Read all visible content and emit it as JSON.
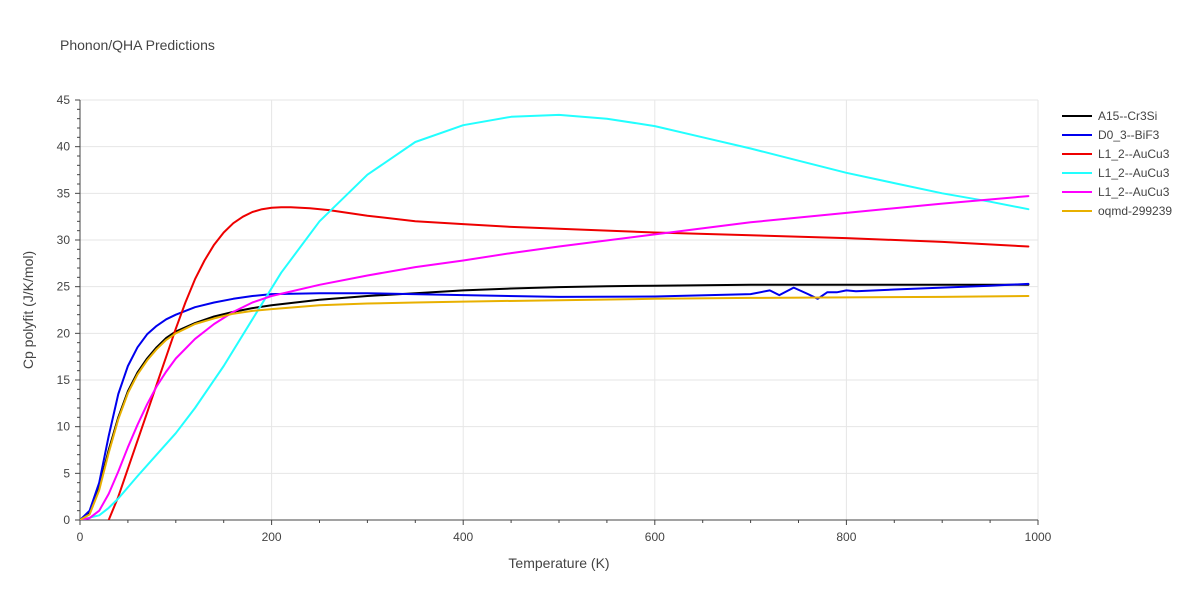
{
  "chart_data": {
    "type": "line",
    "title": "Phonon/QHA Predictions",
    "xlabel": "Temperature (K)",
    "ylabel": "Cp polyfit (J/K/mol)",
    "xlim": [
      0,
      1000
    ],
    "ylim": [
      0,
      45
    ],
    "xticks": [
      0,
      200,
      400,
      600,
      800,
      1000
    ],
    "yticks": [
      0,
      5,
      10,
      15,
      20,
      25,
      30,
      35,
      40,
      45
    ],
    "xtick_labels": [
      "0",
      "200",
      "400",
      "600",
      "800",
      "1000"
    ],
    "ytick_labels": [
      "0",
      "5",
      "10",
      "15",
      "20",
      "25",
      "30",
      "35",
      "40",
      "45"
    ],
    "grid": true,
    "legend_position": "top-right",
    "series": [
      {
        "name": "A15--Cr3Si",
        "color": "#000000",
        "x": [
          0,
          10,
          20,
          30,
          40,
          50,
          60,
          70,
          80,
          90,
          100,
          120,
          140,
          160,
          180,
          200,
          250,
          300,
          350,
          400,
          450,
          500,
          550,
          600,
          650,
          700,
          750,
          800,
          850,
          900,
          950,
          990
        ],
        "y": [
          0,
          0.8,
          3.5,
          7.5,
          11,
          13.8,
          15.8,
          17.3,
          18.5,
          19.5,
          20.2,
          21.1,
          21.8,
          22.3,
          22.7,
          23,
          23.6,
          24,
          24.3,
          24.6,
          24.8,
          24.95,
          25.05,
          25.1,
          25.15,
          25.2,
          25.2,
          25.2,
          25.2,
          25.2,
          25.2,
          25.2
        ]
      },
      {
        "name": "D0_3--BiF3",
        "color": "#0000ee",
        "x": [
          0,
          10,
          20,
          30,
          40,
          50,
          60,
          70,
          80,
          90,
          100,
          110,
          120,
          140,
          160,
          180,
          200,
          250,
          300,
          400,
          500,
          600,
          700,
          720,
          730,
          745,
          760,
          770,
          780,
          790,
          800,
          810,
          850,
          900,
          950,
          990
        ],
        "y": [
          0,
          1,
          4,
          9,
          13.5,
          16.5,
          18.5,
          19.9,
          20.8,
          21.5,
          22,
          22.4,
          22.8,
          23.3,
          23.7,
          24,
          24.2,
          24.3,
          24.3,
          24.1,
          23.9,
          23.95,
          24.2,
          24.6,
          24.1,
          24.9,
          24.2,
          23.7,
          24.4,
          24.4,
          24.6,
          24.5,
          24.7,
          24.9,
          25.1,
          25.3
        ]
      },
      {
        "name": "L1_2--AuCu3",
        "color": "#ee0000",
        "x": [
          30,
          40,
          50,
          60,
          70,
          80,
          90,
          100,
          110,
          120,
          130,
          140,
          150,
          160,
          170,
          180,
          190,
          200,
          210,
          220,
          240,
          260,
          300,
          350,
          400,
          450,
          500,
          600,
          700,
          800,
          900,
          990
        ],
        "y": [
          0,
          2.5,
          5.5,
          8.5,
          11.5,
          14.5,
          17.5,
          20.5,
          23.3,
          25.8,
          27.8,
          29.5,
          30.8,
          31.8,
          32.5,
          33,
          33.3,
          33.45,
          33.5,
          33.5,
          33.4,
          33.2,
          32.6,
          32,
          31.7,
          31.4,
          31.2,
          30.8,
          30.5,
          30.2,
          29.8,
          29.3
        ]
      },
      {
        "name": "L1_2--AuCu3",
        "color": "#22ffff",
        "x": [
          0,
          20,
          30,
          40,
          60,
          80,
          100,
          120,
          150,
          180,
          210,
          250,
          300,
          350,
          400,
          450,
          500,
          550,
          600,
          650,
          700,
          750,
          800,
          850,
          900,
          950,
          990
        ],
        "y": [
          0,
          0.5,
          1.3,
          2.3,
          4.7,
          7,
          9.3,
          12,
          16.5,
          21.5,
          26.5,
          32,
          37,
          40.5,
          42.3,
          43.2,
          43.4,
          43,
          42.2,
          41,
          39.8,
          38.5,
          37.2,
          36.1,
          35,
          34.1,
          33.3
        ]
      },
      {
        "name": "L1_2--AuCu3",
        "color": "#ff00ff",
        "x": [
          0,
          10,
          20,
          30,
          40,
          50,
          60,
          70,
          80,
          90,
          100,
          120,
          140,
          160,
          180,
          200,
          250,
          300,
          350,
          400,
          450,
          500,
          600,
          700,
          800,
          900,
          990
        ],
        "y": [
          0,
          0.2,
          1,
          2.8,
          5.2,
          7.8,
          10.2,
          12.4,
          14.3,
          15.9,
          17.3,
          19.4,
          21,
          22.3,
          23.3,
          24,
          25.2,
          26.2,
          27.1,
          27.8,
          28.6,
          29.3,
          30.6,
          31.9,
          32.9,
          33.9,
          34.7
        ]
      },
      {
        "name": "oqmd-299239",
        "color": "#e8b000",
        "x": [
          0,
          10,
          20,
          30,
          40,
          50,
          60,
          70,
          80,
          90,
          100,
          120,
          140,
          160,
          180,
          200,
          250,
          300,
          350,
          400,
          500,
          600,
          700,
          800,
          900,
          990
        ],
        "y": [
          0,
          0.6,
          3.2,
          7.2,
          10.8,
          13.6,
          15.6,
          17.1,
          18.3,
          19.3,
          20,
          21,
          21.6,
          22.1,
          22.4,
          22.6,
          23,
          23.2,
          23.3,
          23.4,
          23.55,
          23.7,
          23.8,
          23.85,
          23.9,
          24
        ]
      }
    ]
  }
}
